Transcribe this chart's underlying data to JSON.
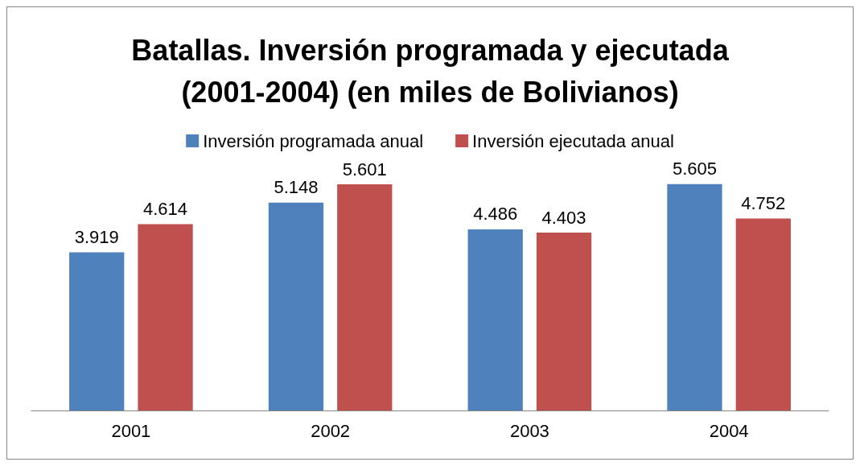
{
  "chart_data": {
    "type": "bar",
    "title": "Batallas. Inversión programada y ejecutada\n(2001-2004) (en miles de Bolivianos)",
    "categories": [
      "2001",
      "2002",
      "2003",
      "2004"
    ],
    "series": [
      {
        "name": "Inversión programada anual",
        "color": "#4f81bd",
        "values": [
          3919,
          5148,
          4486,
          5605
        ],
        "value_labels": [
          "3.919",
          "5.148",
          "4.486",
          "5.605"
        ]
      },
      {
        "name": "Inversión ejecutada anual",
        "color": "#c0504d",
        "values": [
          4614,
          5601,
          4403,
          4752
        ],
        "value_labels": [
          "4.614",
          "5.601",
          "4.403",
          "4.752"
        ]
      }
    ],
    "legend": "top",
    "grid": false
  }
}
